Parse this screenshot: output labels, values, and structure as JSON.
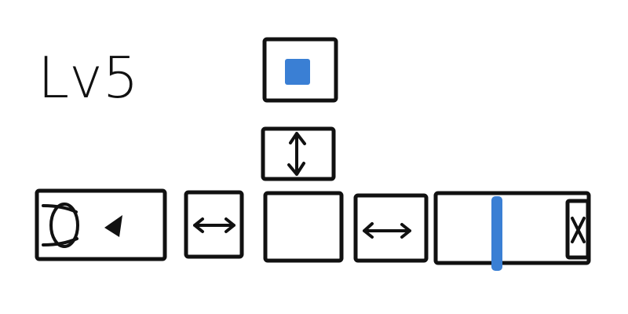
{
  "level": {
    "label": "Lv5"
  }
}
